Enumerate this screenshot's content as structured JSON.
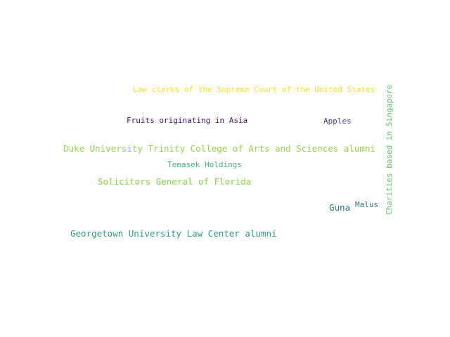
{
  "words": [
    {
      "text": "Law clerks of the Supreme Court of the United States",
      "color": "#f2e51d"
    },
    {
      "text": "Fruits originating in Asia",
      "color": "#471164"
    },
    {
      "text": "Apples",
      "color": "#433e85"
    },
    {
      "text": "Duke University Trinity College of Arts and Sciences alumni",
      "color": "#8ed645"
    },
    {
      "text": "Temasek Holdings",
      "color": "#3aba76"
    },
    {
      "text": "Solicitors General of Florida",
      "color": "#84d44b"
    },
    {
      "text": "Guna",
      "color": "#2c738e"
    },
    {
      "text": "Malus",
      "color": "#2a788e"
    },
    {
      "text": "Georgetown University Law Center alumni",
      "color": "#2a9d8a"
    },
    {
      "text": "Charities based in Singapore",
      "color": "#5ec962"
    }
  ]
}
